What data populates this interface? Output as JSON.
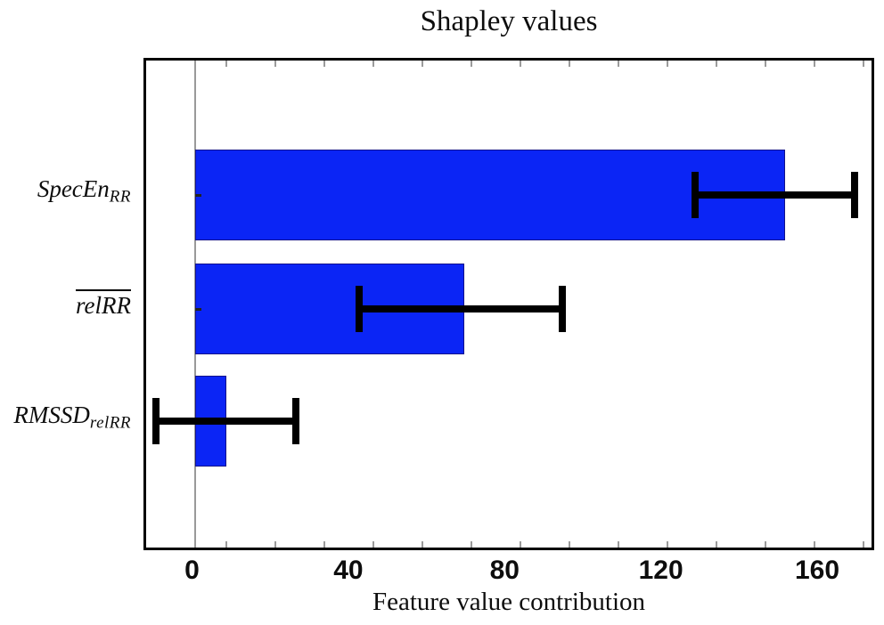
{
  "chart_data": {
    "type": "bar",
    "orientation": "horizontal",
    "title": "Shapley values",
    "xlabel": "Feature value contribution",
    "ylabel": "",
    "categories": [
      "SpecEn_RR",
      "mean_relRR",
      "RMSSD_relRR"
    ],
    "category_labels": [
      {
        "main": "SpecEn",
        "sub": "RR",
        "overline": false
      },
      {
        "main": "relRR",
        "sub": "",
        "overline": true
      },
      {
        "main": "RMSSD",
        "sub": "relRR",
        "overline": false
      }
    ],
    "values": [
      151,
      69,
      8
    ],
    "error_low": [
      128,
      42,
      -10
    ],
    "error_high": [
      169,
      94,
      26
    ],
    "xticks": [
      0,
      40,
      80,
      120,
      160
    ],
    "xlim": [
      -12,
      175
    ],
    "grid": false,
    "legend": false,
    "colors": {
      "bar_fill": "#0b25f5",
      "bar_edge": "#12128c",
      "error_bar": "#000000",
      "zero_line": "#999999",
      "minor_tick": "#9b9b9b",
      "frame": "#000000"
    }
  }
}
